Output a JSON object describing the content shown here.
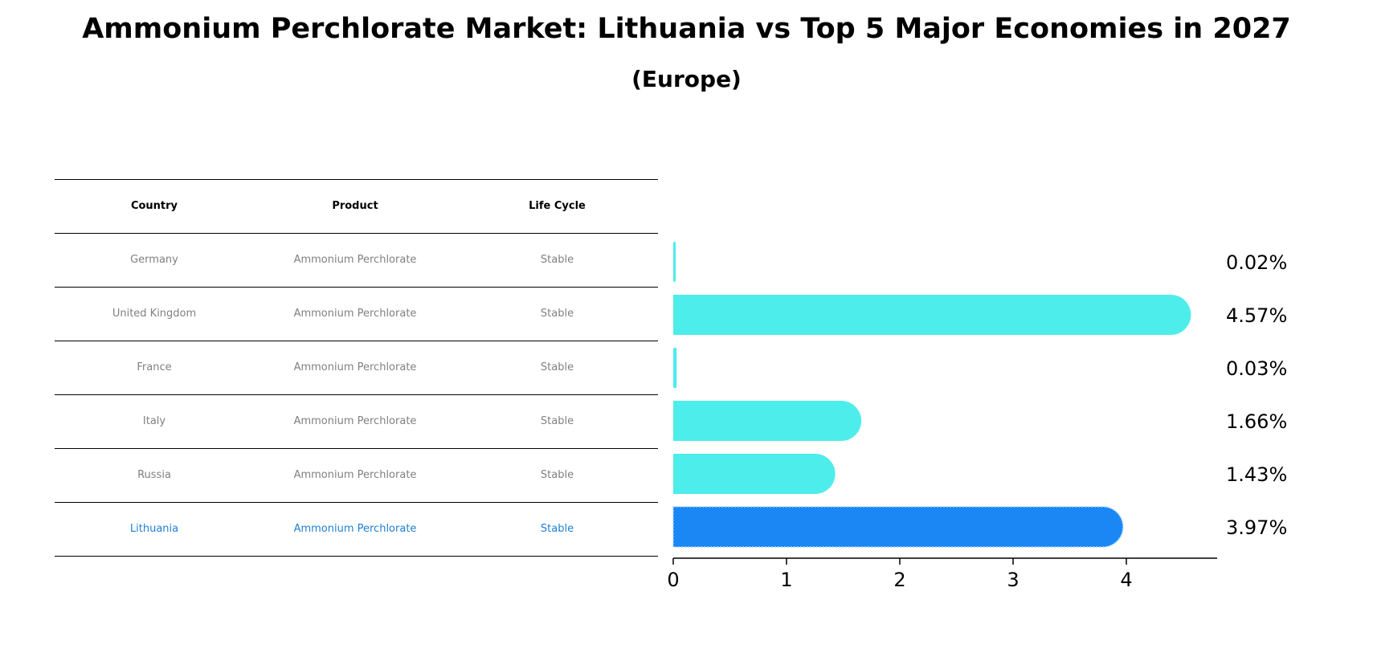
{
  "title": "Ammonium Perchlorate Market: Lithuania vs Top 5 Major Economies in 2027",
  "subtitle": "(Europe)",
  "table": {
    "headers": [
      "Country",
      "Product",
      "Life Cycle"
    ],
    "rows": [
      {
        "country": "Germany",
        "product": "Ammonium Perchlorate",
        "life_cycle": "Stable"
      },
      {
        "country": "United Kingdom",
        "product": "Ammonium Perchlorate",
        "life_cycle": "Stable"
      },
      {
        "country": "France",
        "product": "Ammonium Perchlorate",
        "life_cycle": "Stable"
      },
      {
        "country": "Italy",
        "product": "Ammonium Perchlorate",
        "life_cycle": "Stable"
      },
      {
        "country": "Russia",
        "product": "Ammonium Perchlorate",
        "life_cycle": "Stable"
      },
      {
        "country": "Lithuania",
        "product": "Ammonium Perchlorate",
        "life_cycle": "Stable"
      }
    ],
    "highlight_row": 5,
    "highlight_color": "#1f7fd6"
  },
  "chart_data": {
    "type": "bar",
    "orientation": "horizontal",
    "categories": [
      "Germany",
      "United Kingdom",
      "France",
      "Italy",
      "Russia",
      "Lithuania"
    ],
    "values": [
      0.02,
      4.57,
      0.03,
      1.66,
      1.43,
      3.97
    ],
    "value_labels": [
      "0.02%",
      "4.57%",
      "0.03%",
      "1.66%",
      "1.43%",
      "3.97%"
    ],
    "xlim": [
      0,
      4.8
    ],
    "xticks": [
      0,
      1,
      2,
      3,
      4
    ],
    "bar_color": "#4dedeb",
    "highlight_color": "#1a87f5",
    "highlight_index": 5
  }
}
